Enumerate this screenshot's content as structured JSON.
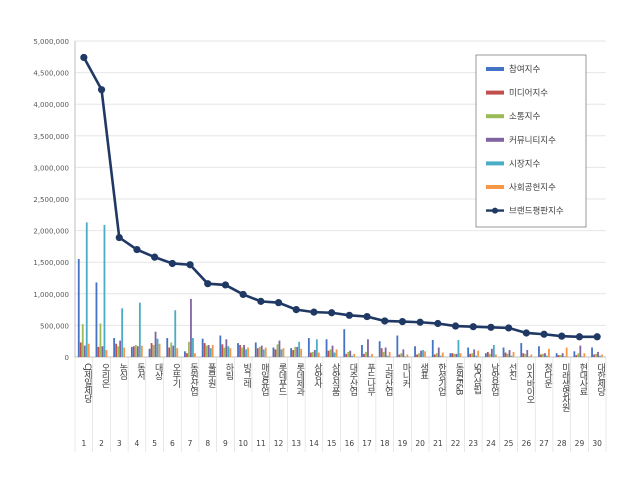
{
  "chart_data": {
    "type": "bar",
    "title": "",
    "xlabel": "",
    "ylabel": "",
    "ylim": [
      0,
      5000000
    ],
    "yticks": [
      "0",
      "500,000",
      "1,000,000",
      "1,500,000",
      "2,000,000",
      "2,500,000",
      "3,000,000",
      "3,500,000",
      "4,000,000",
      "4,500,000",
      "5,000,000"
    ],
    "grid": true,
    "legend_position": "right",
    "categories": [
      "CJ제일제당",
      "오리온",
      "농심",
      "동서",
      "대상",
      "오뚜기",
      "동원산업",
      "풀무원",
      "하림",
      "빙그레",
      "매일유업",
      "롯데푸드",
      "롯데제과",
      "삼양사",
      "삼양식품",
      "대주산업",
      "푸드나무",
      "고려산업",
      "마니커",
      "샘표",
      "한성기업",
      "동원F&B",
      "SPC삼립",
      "남양유업",
      "선진",
      "이지바이오",
      "정다운",
      "미래생명자원",
      "현대사료",
      "대한제당"
    ],
    "ranks": [
      "1",
      "2",
      "3",
      "4",
      "5",
      "6",
      "7",
      "8",
      "9",
      "10",
      "11",
      "12",
      "13",
      "14",
      "15",
      "16",
      "17",
      "18",
      "19",
      "20",
      "21",
      "22",
      "23",
      "24",
      "25",
      "26",
      "27",
      "28",
      "29",
      "30"
    ],
    "series": [
      {
        "name": "참여지수",
        "kind": "bar",
        "color": "#4472c4",
        "values": [
          1550000,
          1180000,
          300000,
          160000,
          130000,
          300000,
          90000,
          290000,
          340000,
          220000,
          230000,
          150000,
          140000,
          300000,
          280000,
          440000,
          190000,
          250000,
          340000,
          170000,
          270000,
          60000,
          150000,
          60000,
          150000,
          220000,
          170000,
          60000,
          90000,
          150000
        ]
      },
      {
        "name": "미디어지수",
        "kind": "bar",
        "color": "#c0504d",
        "values": [
          230000,
          160000,
          210000,
          170000,
          220000,
          150000,
          60000,
          220000,
          200000,
          190000,
          140000,
          120000,
          110000,
          70000,
          100000,
          50000,
          50000,
          140000,
          40000,
          40000,
          40000,
          60000,
          50000,
          80000,
          70000,
          60000,
          40000,
          30000,
          30000,
          40000
        ]
      },
      {
        "name": "소통지수",
        "kind": "bar",
        "color": "#9bbb59",
        "values": [
          520000,
          530000,
          170000,
          190000,
          190000,
          230000,
          240000,
          180000,
          150000,
          150000,
          160000,
          200000,
          160000,
          80000,
          120000,
          80000,
          80000,
          80000,
          60000,
          60000,
          60000,
          50000,
          60000,
          50000,
          50000,
          50000,
          50000,
          30000,
          60000,
          50000
        ]
      },
      {
        "name": "커뮤니티지수",
        "kind": "bar",
        "color": "#8064a2",
        "values": [
          180000,
          170000,
          260000,
          170000,
          400000,
          180000,
          920000,
          190000,
          280000,
          190000,
          180000,
          260000,
          160000,
          110000,
          180000,
          100000,
          280000,
          150000,
          120000,
          100000,
          150000,
          50000,
          120000,
          130000,
          110000,
          110000,
          60000,
          60000,
          180000,
          80000
        ]
      },
      {
        "name": "시장지수",
        "kind": "bar",
        "color": "#4bacc6",
        "values": [
          2130000,
          2090000,
          770000,
          860000,
          290000,
          740000,
          300000,
          140000,
          170000,
          120000,
          120000,
          120000,
          240000,
          280000,
          70000,
          20000,
          10000,
          20000,
          10000,
          110000,
          20000,
          270000,
          20000,
          190000,
          20000,
          10000,
          20000,
          10000,
          10000,
          20000
        ]
      },
      {
        "name": "사회공헌지수",
        "kind": "bar",
        "color": "#f79646",
        "values": [
          210000,
          110000,
          150000,
          180000,
          210000,
          140000,
          60000,
          190000,
          140000,
          150000,
          150000,
          140000,
          130000,
          70000,
          120000,
          50000,
          50000,
          80000,
          40000,
          90000,
          70000,
          60000,
          100000,
          40000,
          80000,
          40000,
          130000,
          150000,
          60000,
          40000
        ]
      },
      {
        "name": "브랜드평판지수",
        "kind": "line",
        "color": "#1f3864",
        "values": [
          4740000,
          4230000,
          1890000,
          1700000,
          1580000,
          1480000,
          1460000,
          1160000,
          1140000,
          990000,
          880000,
          860000,
          750000,
          710000,
          700000,
          660000,
          640000,
          570000,
          560000,
          550000,
          530000,
          490000,
          480000,
          470000,
          460000,
          380000,
          360000,
          330000,
          320000,
          320000
        ]
      }
    ]
  }
}
